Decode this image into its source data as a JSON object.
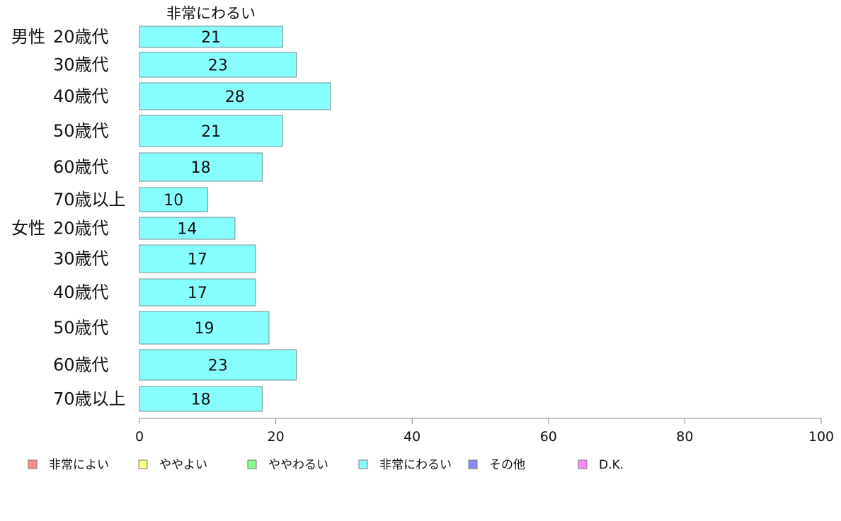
{
  "chart_data": {
    "type": "bar",
    "orientation": "horizontal",
    "title": "非常にわるい",
    "categories": [
      {
        "group": "男性",
        "label": "20歳代"
      },
      {
        "group": "",
        "label": "30歳代"
      },
      {
        "group": "",
        "label": "40歳代"
      },
      {
        "group": "",
        "label": "50歳代"
      },
      {
        "group": "",
        "label": "60歳代"
      },
      {
        "group": "",
        "label": "70歳以上"
      },
      {
        "group": "女性",
        "label": "20歳代"
      },
      {
        "group": "",
        "label": "30歳代"
      },
      {
        "group": "",
        "label": "40歳代"
      },
      {
        "group": "",
        "label": "50歳代"
      },
      {
        "group": "",
        "label": "60歳代"
      },
      {
        "group": "",
        "label": "70歳以上"
      }
    ],
    "series": [
      {
        "name": "非常にわるい",
        "color": "#88ffff",
        "values": [
          21,
          23,
          28,
          21,
          18,
          10,
          14,
          17,
          17,
          19,
          23,
          18
        ],
        "labels": [
          "21",
          "23",
          "28",
          "21",
          "18",
          "10",
          "14",
          "17",
          "17",
          "19",
          "23",
          "18"
        ]
      }
    ],
    "xlim": [
      0,
      100
    ],
    "xticks": [
      "0",
      "20",
      "40",
      "60",
      "80",
      "100"
    ],
    "legend": {
      "placement": "bottom",
      "items": [
        {
          "label": "非常によい",
          "color": "#ff8888"
        },
        {
          "label": "ややよい",
          "color": "#ffff88"
        },
        {
          "label": "ややわるい",
          "color": "#88ff88"
        },
        {
          "label": "非常にわるい",
          "color": "#88ffff"
        },
        {
          "label": "その他",
          "color": "#8888ff"
        },
        {
          "label": "D.K.",
          "color": "#ff88ff"
        }
      ]
    },
    "grid": false
  }
}
